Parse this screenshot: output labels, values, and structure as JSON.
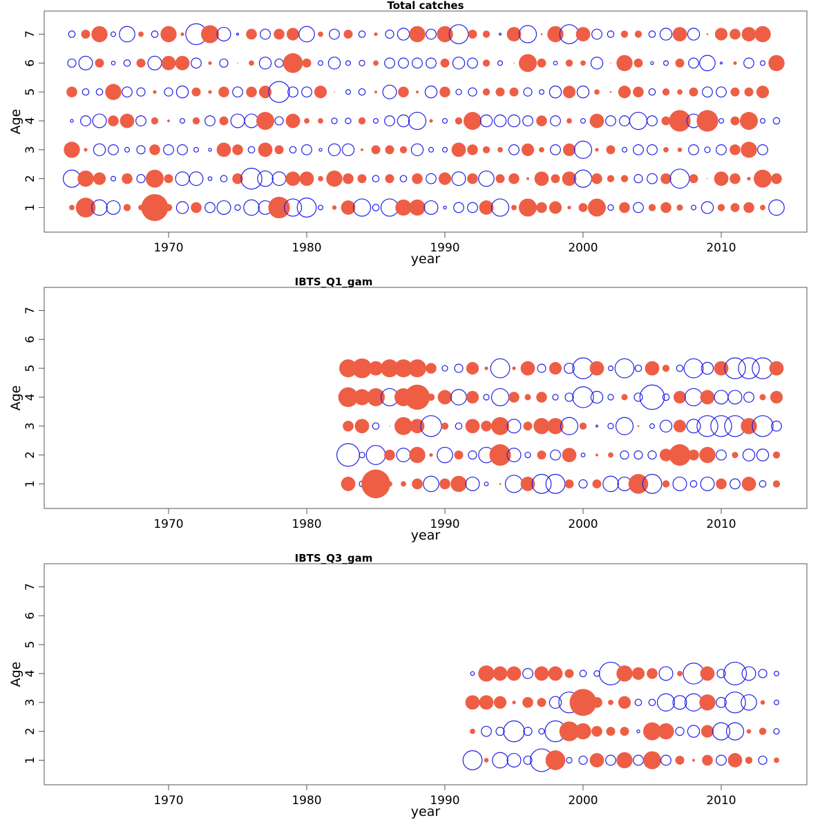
{
  "colors": {
    "positive": "#EE5E45",
    "negative": "#1F1FE6",
    "frame": "#555555"
  },
  "chart_data": [
    {
      "type": "scatter",
      "subtype": "bubble-residuals",
      "title": "Total catches",
      "xlabel": "year",
      "ylabel": "Age",
      "xticks": [
        1970,
        1980,
        1990,
        2000,
        2010
      ],
      "yticks": [
        1,
        2,
        3,
        4,
        5,
        6,
        7
      ],
      "xlim": [
        1961,
        2016
      ],
      "ylim": [
        0.15,
        7.8
      ],
      "encoding": "filled red = positive residual, open blue = negative residual, bubble size ∝ |residual|",
      "year_start": 1963,
      "series": [
        {
          "age": 7,
          "values": [
            -0.4,
            0.5,
            0.9,
            -0.3,
            -0.9,
            0.3,
            -0.4,
            0.9,
            0.2,
            -1.2,
            1.0,
            -0.8,
            -0.15,
            0.6,
            -0.6,
            0.6,
            0.7,
            -0.9,
            0.3,
            -0.6,
            0.5,
            -0.4,
            0.2,
            -0.5,
            -0.7,
            0.9,
            -0.6,
            0.9,
            -1.1,
            0.5,
            0.4,
            -0.15,
            0.8,
            -1.0,
            0.1,
            0.9,
            -1.1,
            0.8,
            -0.6,
            -0.4,
            0.4,
            0.4,
            -0.4,
            -0.7,
            0.8,
            -0.7,
            0.1,
            0.7,
            0.6,
            0.8,
            0.9
          ]
        },
        {
          "age": 6,
          "values": [
            -0.5,
            -0.8,
            0.5,
            -0.25,
            -0.4,
            0.5,
            -0.8,
            0.8,
            0.8,
            -0.6,
            0.2,
            -0.5,
            0.05,
            0.3,
            -0.7,
            -0.5,
            1.1,
            0.5,
            -0.3,
            -0.7,
            -0.3,
            -0.35,
            0.3,
            -0.6,
            -0.6,
            -0.6,
            -0.6,
            0.5,
            -0.7,
            -0.6,
            0.4,
            -0.3,
            0.05,
            1.0,
            0.5,
            -0.25,
            0.4,
            0.3,
            -0.7,
            0.05,
            0.9,
            0.5,
            -0.2,
            -0.3,
            0.5,
            -0.6,
            -0.9,
            -0.15,
            0.2,
            -0.6,
            -0.3,
            0.9
          ]
        },
        {
          "age": 5,
          "values": [
            0.6,
            -0.4,
            -0.4,
            0.9,
            -0.6,
            -0.5,
            0.2,
            -0.5,
            -0.7,
            0.5,
            0.2,
            0.6,
            -0.6,
            0.6,
            0.7,
            -1.2,
            -0.6,
            -0.6,
            0.7,
            0.05,
            -0.3,
            -0.4,
            0.15,
            -0.8,
            0.6,
            0.15,
            -0.7,
            0.6,
            -0.35,
            -0.5,
            0.4,
            0.5,
            0.5,
            -0.5,
            -0.3,
            -0.7,
            0.7,
            -0.7,
            0.3,
            0.1,
            0.7,
            0.6,
            -0.4,
            0.4,
            0.3,
            0.5,
            -0.6,
            -0.6,
            0.5,
            0.5,
            0.7
          ]
        },
        {
          "age": 4,
          "values": [
            -0.2,
            -0.6,
            -0.8,
            0.6,
            0.8,
            -0.6,
            0.4,
            0.15,
            -0.3,
            0.4,
            -0.6,
            0.5,
            -0.8,
            -0.8,
            1.0,
            -0.5,
            0.8,
            0.3,
            0.3,
            -0.35,
            -0.35,
            0.4,
            -0.3,
            -0.6,
            -0.7,
            -1.0,
            0.2,
            -0.3,
            0.4,
            1.0,
            -0.7,
            -0.7,
            -0.7,
            -0.6,
            0.6,
            -0.6,
            0.3,
            -0.3,
            0.8,
            -0.6,
            -0.6,
            -1.0,
            -0.6,
            0.5,
            1.2,
            -0.8,
            1.2,
            -0.3,
            0.5,
            1.0,
            -0.3,
            -0.4
          ]
        },
        {
          "age": 3,
          "values": [
            0.9,
            0.2,
            -0.7,
            -0.6,
            -0.3,
            -0.5,
            0.6,
            -0.6,
            -0.6,
            -0.3,
            -0.2,
            0.8,
            0.6,
            -0.4,
            0.8,
            0.5,
            -0.4,
            -0.6,
            -0.2,
            -0.7,
            -0.7,
            0.15,
            0.5,
            0.5,
            0.4,
            -0.7,
            -0.3,
            -0.3,
            0.8,
            0.6,
            0.4,
            0.3,
            -0.6,
            0.7,
            0.3,
            -0.6,
            0.7,
            -1.0,
            0.2,
            0.5,
            -0.3,
            -0.6,
            -0.6,
            0.3,
            0.25,
            -0.6,
            -0.35,
            -0.6,
            0.6,
            0.9,
            -0.6
          ]
        },
        {
          "age": 2,
          "values": [
            -1.0,
            0.9,
            0.7,
            -0.3,
            0.6,
            -0.5,
            1.0,
            0.5,
            -0.8,
            -0.8,
            -0.25,
            -0.4,
            0.6,
            -1.2,
            -0.9,
            -0.8,
            0.8,
            0.8,
            0.3,
            0.9,
            0.6,
            0.5,
            -0.4,
            0.5,
            -0.4,
            0.6,
            -0.6,
            0.7,
            -0.8,
            0.6,
            -0.9,
            0.5,
            0.6,
            0.15,
            0.8,
            0.5,
            0.8,
            -1.0,
            0.6,
            0.4,
            0.4,
            -0.5,
            -0.6,
            0.6,
            -1.1,
            0.5,
            0.05,
            0.8,
            0.6,
            0.2,
            1.0,
            0.6,
            -0.3
          ]
        },
        {
          "age": 1,
          "values": [
            0.3,
            1.1,
            -0.9,
            -0.8,
            0.4,
            0.3,
            1.5,
            0.4,
            -0.7,
            0.6,
            -0.6,
            -0.8,
            -0.35,
            -0.9,
            -0.8,
            1.2,
            -1.0,
            -1.1,
            -0.3,
            0.25,
            0.8,
            -1.0,
            -0.4,
            -1.0,
            0.9,
            0.9,
            -0.8,
            -0.2,
            -0.6,
            -0.6,
            0.8,
            -1.0,
            0.3,
            1.0,
            0.6,
            0.7,
            0.2,
            0.5,
            1.0,
            -0.35,
            0.6,
            -0.6,
            0.4,
            0.6,
            0.35,
            -0.3,
            -0.7,
            0.4,
            0.5,
            0.6,
            0.3,
            -0.9,
            -0.4
          ]
        }
      ]
    },
    {
      "type": "scatter",
      "subtype": "bubble-residuals",
      "title": "IBTS_Q1_gam",
      "xlabel": "year",
      "ylabel": "Age",
      "xticks": [
        1970,
        1980,
        1990,
        2000,
        2010
      ],
      "yticks": [
        1,
        2,
        3,
        4,
        5,
        6,
        7
      ],
      "xlim": [
        1961,
        2016
      ],
      "ylim": [
        0.15,
        7.8
      ],
      "year_start": 1983,
      "series": [
        {
          "age": 5,
          "values": [
            1.0,
            1.1,
            0.8,
            1.0,
            1.0,
            1.0,
            0.6,
            -0.35,
            -0.5,
            0.7,
            0.2,
            -1.1,
            0.2,
            0.8,
            -0.5,
            0.7,
            -0.6,
            -1.2,
            0.8,
            -0.3,
            -1.1,
            -0.4,
            0.8,
            0.4,
            -0.4,
            -1.1,
            -0.7,
            0.8,
            -1.2,
            -1.2,
            -1.2,
            0.8
          ]
        },
        {
          "age": 4,
          "values": [
            1.1,
            0.9,
            1.0,
            -1.0,
            1.0,
            1.4,
            0.4,
            0.8,
            -0.9,
            0.7,
            -0.35,
            -1.0,
            0.6,
            0.35,
            0.6,
            -0.35,
            -0.5,
            -1.2,
            -0.7,
            -0.35,
            0.35,
            -0.5,
            -1.4,
            -0.4,
            0.7,
            -1.0,
            0.8,
            -0.8,
            -0.8,
            -0.6,
            0.35,
            0.7
          ]
        },
        {
          "age": 3,
          "values": [
            0.6,
            0.8,
            -0.4,
            0.05,
            1.0,
            0.8,
            -1.2,
            0.4,
            -0.4,
            0.8,
            0.6,
            1.0,
            -0.8,
            0.5,
            0.9,
            0.9,
            -1.0,
            0.4,
            -0.15,
            -0.35,
            -1.0,
            0.1,
            -0.3,
            -0.7,
            0.7,
            -0.8,
            -1.2,
            -1.2,
            -1.2,
            0.9,
            -1.2,
            -0.6,
            0.4
          ]
        },
        {
          "age": 2,
          "values": [
            -1.3,
            -0.35,
            -1.1,
            0.6,
            -0.8,
            0.9,
            0.2,
            -0.9,
            0.5,
            -0.5,
            -0.9,
            1.2,
            -0.8,
            -0.35,
            0.5,
            -0.6,
            0.8,
            -0.25,
            0.15,
            0.3,
            -0.5,
            -0.5,
            -0.5,
            0.7,
            1.2,
            0.6,
            0.9,
            -0.6,
            0.35,
            -0.7,
            -0.7,
            0.4,
            0.4
          ]
        },
        {
          "age": 1,
          "values": [
            0.8,
            -0.35,
            1.6,
            0.3,
            0.3,
            0.6,
            -0.9,
            0.6,
            0.9,
            -0.8,
            -0.25,
            0.1,
            -1.0,
            0.8,
            -1.1,
            -1.1,
            0.5,
            -0.5,
            0.5,
            -0.9,
            -0.8,
            1.1,
            -1.1,
            0.4,
            -0.8,
            -0.4,
            -0.8,
            0.6,
            -0.6,
            0.8,
            -0.4,
            0.4,
            -0.6
          ]
        }
      ]
    },
    {
      "type": "scatter",
      "subtype": "bubble-residuals",
      "title": "IBTS_Q3_gam",
      "xlabel": "year",
      "ylabel": "Age",
      "xticks": [
        1970,
        1980,
        1990,
        2000,
        2010
      ],
      "yticks": [
        1,
        2,
        3,
        4,
        5,
        6,
        7
      ],
      "xlim": [
        1961,
        2016
      ],
      "ylim": [
        0.15,
        7.8
      ],
      "year_start": 1992,
      "series": [
        {
          "age": 4,
          "values": [
            -0.25,
            0.9,
            0.8,
            0.8,
            -0.6,
            0.8,
            0.8,
            0.5,
            -0.4,
            -0.35,
            -1.3,
            0.9,
            0.7,
            0.6,
            -0.8,
            0.3,
            -1.2,
            0.8,
            -0.5,
            -1.3,
            -0.8,
            -0.5,
            -0.3
          ]
        },
        {
          "age": 3,
          "values": [
            0.8,
            0.8,
            0.7,
            0.2,
            0.6,
            0.5,
            -0.7,
            -1.2,
            1.5,
            0.6,
            0.3,
            0.7,
            -0.4,
            -0.4,
            -1.0,
            -0.8,
            -1.0,
            0.9,
            -0.6,
            -1.2,
            -0.9,
            0.25,
            -0.3
          ]
        },
        {
          "age": 2,
          "values": [
            0.3,
            -0.6,
            -0.5,
            -1.2,
            -0.5,
            -0.35,
            -1.2,
            1.1,
            0.9,
            0.6,
            0.5,
            0.5,
            -0.2,
            1.0,
            0.9,
            -0.5,
            -0.7,
            0.7,
            -1.0,
            -1.0,
            0.25,
            0.4,
            -0.35
          ]
        },
        {
          "age": 1,
          "values": [
            -1.1,
            0.25,
            -0.9,
            -0.8,
            -0.5,
            -1.3,
            1.1,
            -0.35,
            -0.5,
            0.8,
            -0.6,
            0.9,
            -0.6,
            1.0,
            -0.6,
            0.5,
            0.15,
            0.6,
            -0.6,
            0.8,
            0.4,
            -0.5,
            0.3
          ]
        }
      ]
    }
  ]
}
